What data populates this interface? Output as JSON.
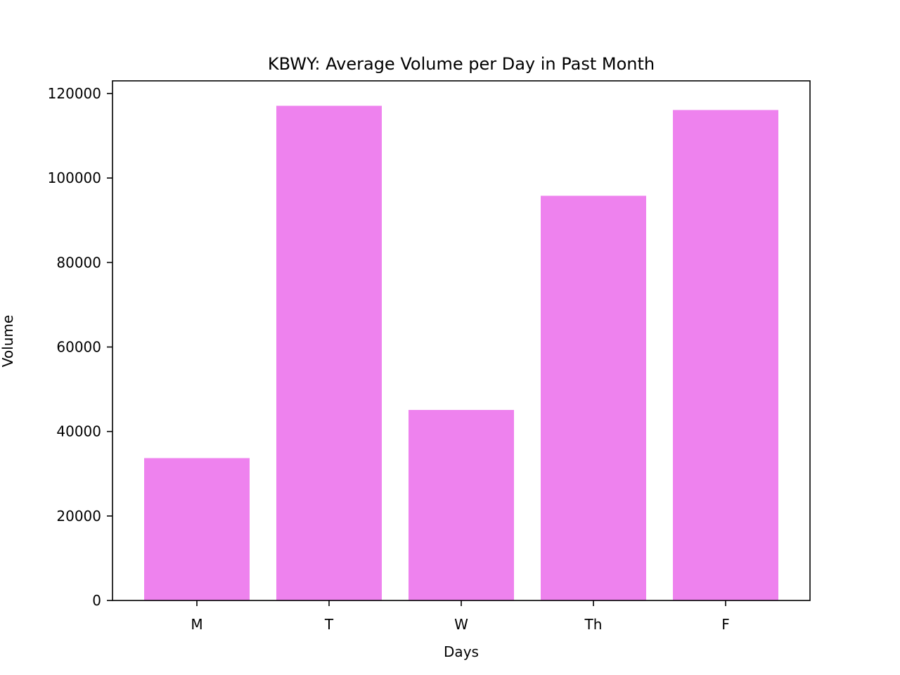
{
  "chart_data": {
    "type": "bar",
    "title": "KBWY: Average Volume per Day in Past Month",
    "xlabel": "Days",
    "ylabel": "Volume",
    "categories": [
      "M",
      "T",
      "W",
      "Th",
      "F"
    ],
    "values": [
      33700,
      117100,
      45100,
      95800,
      116100
    ],
    "ylim": [
      0,
      123000
    ],
    "yticks": [
      0,
      20000,
      40000,
      60000,
      80000,
      100000,
      120000
    ],
    "ytick_labels": [
      "0",
      "20000",
      "40000",
      "60000",
      "80000",
      "100000",
      "120000"
    ],
    "grid": false,
    "legend": "none",
    "bar_color": "#ee82ee"
  }
}
